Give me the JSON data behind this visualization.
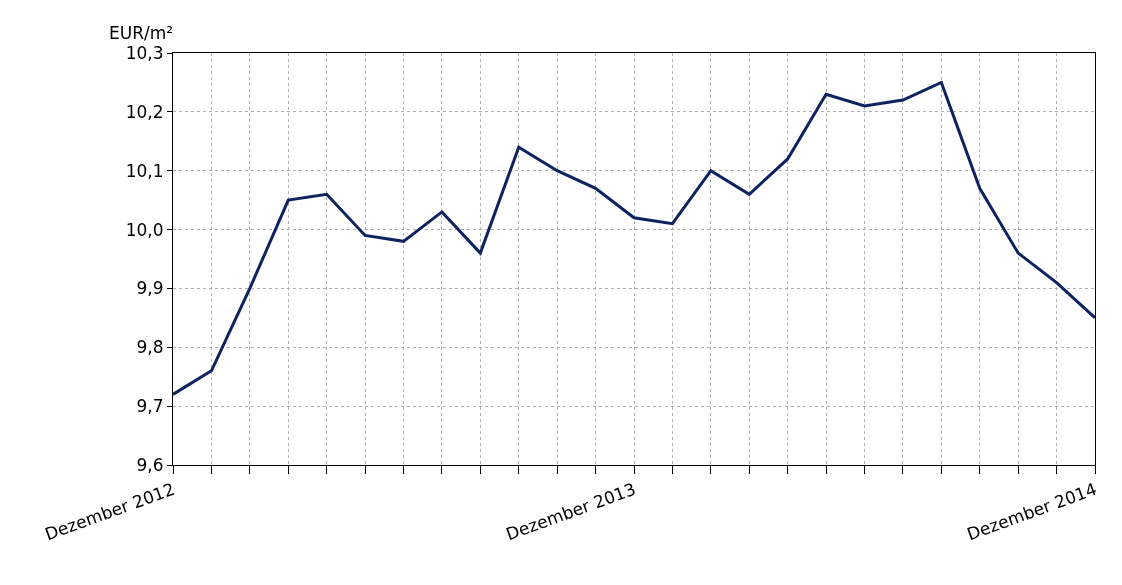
{
  "chart_data": {
    "type": "line",
    "ylabel": "EUR/m²",
    "categories": [
      "Dezember 2012",
      null,
      null,
      null,
      null,
      null,
      null,
      null,
      null,
      null,
      null,
      null,
      "Dezember 2013",
      null,
      null,
      null,
      null,
      null,
      null,
      null,
      null,
      null,
      null,
      null,
      "Dezember 2014"
    ],
    "series": [
      {
        "color": "#0d2360",
        "values": [
          9.72,
          9.76,
          9.9,
          10.05,
          10.06,
          9.99,
          9.98,
          10.03,
          9.96,
          10.14,
          10.1,
          10.07,
          10.02,
          10.01,
          10.1,
          10.06,
          10.12,
          10.23,
          10.21,
          10.22,
          10.25,
          10.07,
          9.96,
          9.91,
          9.85
        ]
      }
    ],
    "ylim": [
      9.6,
      10.3
    ],
    "yticks": [
      {
        "value": 9.6,
        "label": "9,6"
      },
      {
        "value": 9.7,
        "label": "9,7"
      },
      {
        "value": 9.8,
        "label": "9,8"
      },
      {
        "value": 9.9,
        "label": "9,9"
      },
      {
        "value": 10.0,
        "label": "10,0"
      },
      {
        "value": 10.1,
        "label": "10,1"
      },
      {
        "value": 10.2,
        "label": "10,2"
      },
      {
        "value": 10.3,
        "label": "10,3"
      }
    ],
    "grid": true,
    "marker": "none",
    "line_style": "solid"
  }
}
